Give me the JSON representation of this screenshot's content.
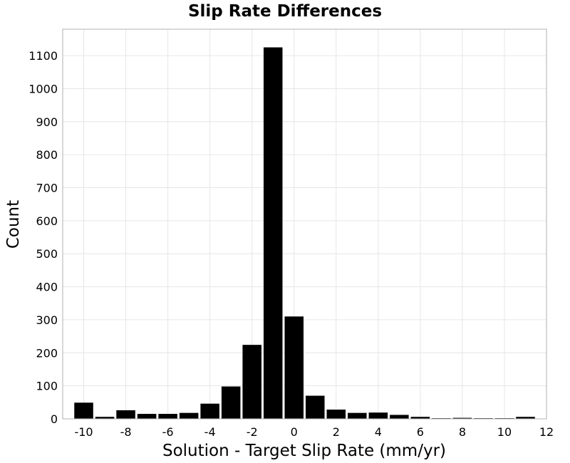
{
  "chart_data": {
    "type": "bar",
    "title": "Slip Rate Differences",
    "xlabel": "Solution - Target Slip Rate (mm/yr)",
    "ylabel": "Count",
    "bin_width": 1,
    "bin_centers": [
      -10,
      -9,
      -8,
      -7,
      -6,
      -5,
      -4,
      -3,
      -2,
      -1,
      0,
      1,
      2,
      3,
      4,
      5,
      6,
      7,
      8,
      9,
      10,
      11
    ],
    "values": [
      49,
      6,
      26,
      15,
      15,
      18,
      46,
      98,
      224,
      1125,
      310,
      70,
      28,
      18,
      19,
      12,
      6,
      2,
      3,
      2,
      2,
      6
    ],
    "xlim": [
      -11,
      12
    ],
    "ylim": [
      0,
      1180
    ],
    "xticks": [
      -10,
      -8,
      -6,
      -4,
      -2,
      0,
      2,
      4,
      6,
      8,
      10,
      12
    ],
    "yticks": [
      0,
      100,
      200,
      300,
      400,
      500,
      600,
      700,
      800,
      900,
      1000,
      1100
    ],
    "grid": true,
    "bar_color": "#000000"
  }
}
